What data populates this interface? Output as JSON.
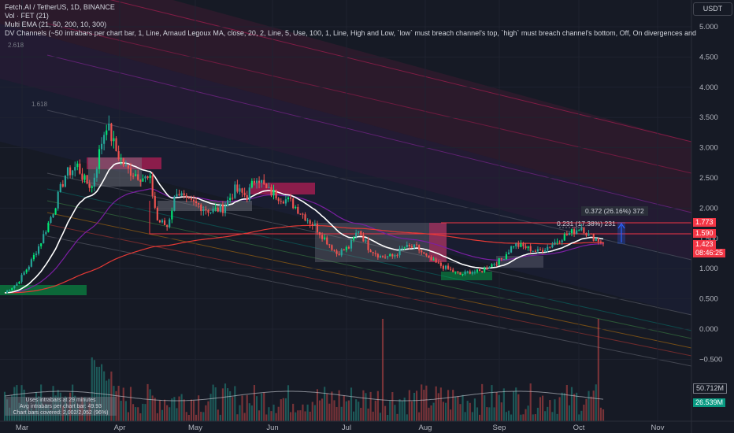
{
  "legend": {
    "title": "Fetch.AI / TetherUS, 1D, BINANCE",
    "vol": "Vol · FET (21)",
    "ema": "Multi EMA (21, 50, 200, 10, 300)",
    "dv": "DV Channels (~50 intrabars per chart bar, 1, Line, Arnaud Legoux MA, close, 20, 2, Line, 5, Use, 100, 1, Line, High and Low, `low` must breach channel's top, `high` must breach channel's bottom, Off, On divergences and"
  },
  "currency_button": "USDT",
  "fib_labels": {
    "f2618": "2.618",
    "f1618": "1.618"
  },
  "measure": {
    "upper": "0.372 (26.16%) 372",
    "lower": "0.231 (17.38%) 231"
  },
  "price_tags": {
    "t1": "1.773",
    "t2": "1.590",
    "t3": "1.423",
    "t3_time": "08:46:25",
    "vol_ma": "50.712M",
    "vol_val": "26.539M"
  },
  "info_box": {
    "line1": "Uses intrabars at 29 minutes",
    "line2": "Avg intrabars per chart bar: 49.93",
    "line3": "Chart bars covered: 2,002/2,052 (96%)"
  },
  "colors": {
    "background": "#161a25",
    "up": "#26a69a",
    "up_bright": "#00e676",
    "down": "#ef5350",
    "ema_white": "#ffffff",
    "ema_red": "#e53935",
    "ema_purple": "#7b1fa2",
    "tag_red": "#f23645",
    "tag_teal": "#089981",
    "channel_pink": "#e91e63"
  },
  "chart_data": {
    "type": "candlestick",
    "symbol": "FETUSDT",
    "interval": "1D",
    "y_axis": {
      "ticks": [
        "5.000",
        "4.500",
        "4.000",
        "3.500",
        "3.000",
        "2.500",
        "2.000",
        "1.500",
        "1.000",
        "0.500",
        "0.000",
        "−0.500"
      ],
      "range": [
        -0.65,
        5.3
      ]
    },
    "x_axis": {
      "ticks": [
        "Mar",
        "Apr",
        "May",
        "Jun",
        "Jul",
        "Aug",
        "Sep",
        "Oct",
        "Nov"
      ]
    },
    "anchors": [
      {
        "d": 0,
        "v": 0.6
      },
      {
        "d": 5,
        "v": 0.75
      },
      {
        "d": 10,
        "v": 1.05
      },
      {
        "d": 15,
        "v": 1.45
      },
      {
        "d": 20,
        "v": 1.95
      },
      {
        "d": 25,
        "v": 2.55
      },
      {
        "d": 30,
        "v": 2.7
      },
      {
        "d": 33,
        "v": 2.45
      },
      {
        "d": 36,
        "v": 2.35
      },
      {
        "d": 40,
        "v": 3.1
      },
      {
        "d": 42,
        "v": 3.4
      },
      {
        "d": 46,
        "v": 2.95
      },
      {
        "d": 50,
        "v": 2.65
      },
      {
        "d": 55,
        "v": 2.55
      },
      {
        "d": 60,
        "v": 2.45
      },
      {
        "d": 63,
        "v": 1.8
      },
      {
        "d": 67,
        "v": 1.7
      },
      {
        "d": 71,
        "v": 2.3
      },
      {
        "d": 75,
        "v": 2.1
      },
      {
        "d": 80,
        "v": 2.05
      },
      {
        "d": 85,
        "v": 1.95
      },
      {
        "d": 90,
        "v": 2.0
      },
      {
        "d": 95,
        "v": 2.3
      },
      {
        "d": 100,
        "v": 2.2
      },
      {
        "d": 104,
        "v": 2.55
      },
      {
        "d": 108,
        "v": 2.3
      },
      {
        "d": 113,
        "v": 2.2
      },
      {
        "d": 118,
        "v": 2.1
      },
      {
        "d": 123,
        "v": 1.9
      },
      {
        "d": 128,
        "v": 1.7
      },
      {
        "d": 133,
        "v": 1.45
      },
      {
        "d": 137,
        "v": 1.25
      },
      {
        "d": 142,
        "v": 1.35
      },
      {
        "d": 146,
        "v": 1.65
      },
      {
        "d": 150,
        "v": 1.35
      },
      {
        "d": 155,
        "v": 1.2
      },
      {
        "d": 160,
        "v": 1.2
      },
      {
        "d": 165,
        "v": 1.35
      },
      {
        "d": 170,
        "v": 1.35
      },
      {
        "d": 175,
        "v": 1.15
      },
      {
        "d": 180,
        "v": 1.05
      },
      {
        "d": 185,
        "v": 0.95
      },
      {
        "d": 188,
        "v": 0.9
      },
      {
        "d": 192,
        "v": 0.95
      },
      {
        "d": 196,
        "v": 0.95
      },
      {
        "d": 200,
        "v": 1.05
      },
      {
        "d": 205,
        "v": 1.15
      },
      {
        "d": 210,
        "v": 1.4
      },
      {
        "d": 215,
        "v": 1.35
      },
      {
        "d": 220,
        "v": 1.28
      },
      {
        "d": 225,
        "v": 1.38
      },
      {
        "d": 230,
        "v": 1.52
      },
      {
        "d": 235,
        "v": 1.62
      },
      {
        "d": 238,
        "v": 1.7
      },
      {
        "d": 241,
        "v": 1.55
      },
      {
        "d": 244,
        "v": 1.5
      },
      {
        "d": 247,
        "v": 1.42
      }
    ],
    "last_close": 1.423
  }
}
